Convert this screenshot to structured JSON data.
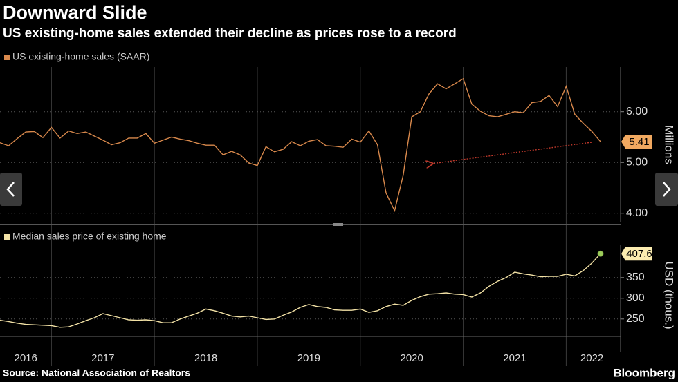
{
  "title": "Downward Slide",
  "subtitle": "US existing-home sales extended their decline as prices rose to a record",
  "source": "Source: National Association of Realtors",
  "brand": "Bloomberg",
  "chart_data": [
    {
      "type": "line",
      "series": [
        {
          "name": "US existing-home sales (SAAR)",
          "color": "#d9894c",
          "values": [
            5.39,
            5.33,
            5.47,
            5.6,
            5.61,
            5.49,
            5.69,
            5.48,
            5.62,
            5.57,
            5.6,
            5.52,
            5.44,
            5.35,
            5.39,
            5.48,
            5.48,
            5.57,
            5.38,
            5.44,
            5.5,
            5.46,
            5.43,
            5.38,
            5.34,
            5.34,
            5.15,
            5.22,
            5.15,
            4.99,
            4.94,
            5.31,
            5.21,
            5.26,
            5.41,
            5.33,
            5.42,
            5.45,
            5.33,
            5.32,
            5.3,
            5.46,
            5.4,
            5.62,
            5.35,
            4.4,
            4.05,
            4.75,
            5.9,
            6.0,
            6.35,
            6.55,
            6.45,
            6.55,
            6.65,
            6.15,
            6.01,
            5.92,
            5.9,
            5.95,
            6.0,
            5.98,
            6.18,
            6.2,
            6.32,
            6.1,
            6.5,
            5.95,
            5.77,
            5.61,
            5.41
          ]
        }
      ],
      "ylim": [
        3.82,
        6.88
      ],
      "yticks": [
        {
          "value": 4,
          "label": "4.00"
        },
        {
          "value": 5,
          "label": "5.00"
        },
        {
          "value": 6,
          "label": "6.00"
        }
      ],
      "y_axis_label": "Millions",
      "grid": true
    },
    {
      "type": "line",
      "categories": [
        null,
        null,
        null,
        "2016",
        null,
        null,
        null,
        null,
        null,
        null,
        null,
        null,
        "2017",
        null,
        null,
        null,
        null,
        null,
        null,
        null,
        null,
        null,
        null,
        null,
        "2018",
        null,
        null,
        null,
        null,
        null,
        null,
        null,
        null,
        null,
        null,
        null,
        "2019",
        null,
        null,
        null,
        null,
        null,
        null,
        null,
        null,
        null,
        null,
        null,
        "2020",
        null,
        null,
        null,
        null,
        null,
        null,
        null,
        null,
        null,
        null,
        null,
        "2021",
        null,
        null,
        null,
        null,
        null,
        null,
        null,
        null,
        "2022",
        null
      ],
      "series": [
        {
          "name": "Median sales price of existing home",
          "color": "#f3e2a6",
          "values": [
            247,
            244,
            240,
            237,
            236,
            235,
            234,
            230,
            231,
            238,
            246,
            253,
            263,
            258,
            253,
            248,
            247,
            248,
            246,
            241,
            241,
            250,
            257,
            264,
            274,
            270,
            264,
            257,
            255,
            257,
            253,
            249,
            250,
            259,
            267,
            278,
            285,
            280,
            278,
            272,
            271,
            271,
            274,
            266,
            270,
            280,
            286,
            283,
            295,
            304,
            310,
            311,
            313,
            310,
            309,
            303,
            313,
            329,
            341,
            350,
            363,
            359,
            356,
            352,
            353,
            353,
            358,
            354,
            367,
            385,
            407.6
          ]
        }
      ],
      "ylim": [
        213,
        428
      ],
      "yticks": [
        250,
        300,
        350
      ],
      "y_axis_label": "USD (thous.)",
      "grid": true
    }
  ]
}
